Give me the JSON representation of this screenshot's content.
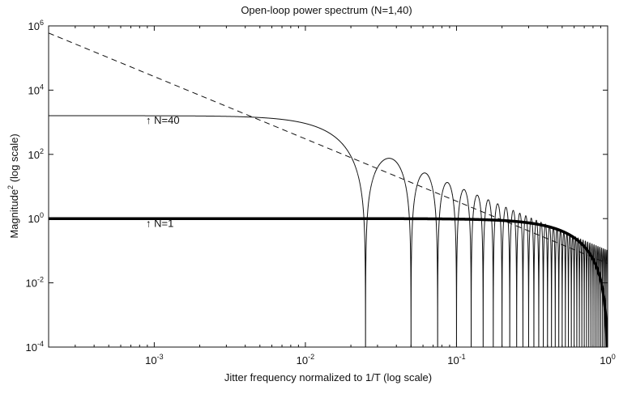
{
  "chart_data": {
    "type": "line",
    "title": "Open-loop power spectrum (N=1,40)",
    "xlabel": "Jitter frequency normalized to 1/T (log scale)",
    "ylabel_main": "Magnitude",
    "ylabel_sup": "2",
    "ylabel_suffix": " (log scale)",
    "x_scale": "log",
    "y_scale": "log",
    "xlim": [
      0.0002,
      1
    ],
    "ylim": [
      0.0001,
      1000000
    ],
    "grid": false,
    "x_ticks": [
      {
        "base": "10",
        "exp": "-3",
        "value": 0.001
      },
      {
        "base": "10",
        "exp": "-2",
        "value": 0.01
      },
      {
        "base": "10",
        "exp": "-1",
        "value": 0.1
      },
      {
        "base": "10",
        "exp": "0",
        "value": 1
      }
    ],
    "y_ticks": [
      {
        "base": "10",
        "exp": "-4",
        "value": 0.0001
      },
      {
        "base": "10",
        "exp": "-2",
        "value": 0.01
      },
      {
        "base": "10",
        "exp": "0",
        "value": 1
      },
      {
        "base": "10",
        "exp": "2",
        "value": 100
      },
      {
        "base": "10",
        "exp": "4",
        "value": 10000
      },
      {
        "base": "10",
        "exp": "6",
        "value": 1000000
      }
    ],
    "series": [
      {
        "model": "sinc_product",
        "N": 40,
        "line": "thin-solid",
        "color": "#111111",
        "dc_value": 1600
      },
      {
        "model": "sinc_single",
        "N": 1,
        "line": "thick-solid",
        "color": "#000000",
        "dc_value": 1
      },
      {
        "model": "power_law",
        "line": "dashed",
        "color": "#111111",
        "points": [
          [
            0.0002,
            600000
          ],
          [
            1,
            0.04
          ]
        ]
      }
    ],
    "annotations": [
      {
        "text": "↑ N=40",
        "x": 0.00088,
        "y": 900
      },
      {
        "text": "↑ N=1",
        "x": 0.00088,
        "y": 0.55
      }
    ]
  }
}
